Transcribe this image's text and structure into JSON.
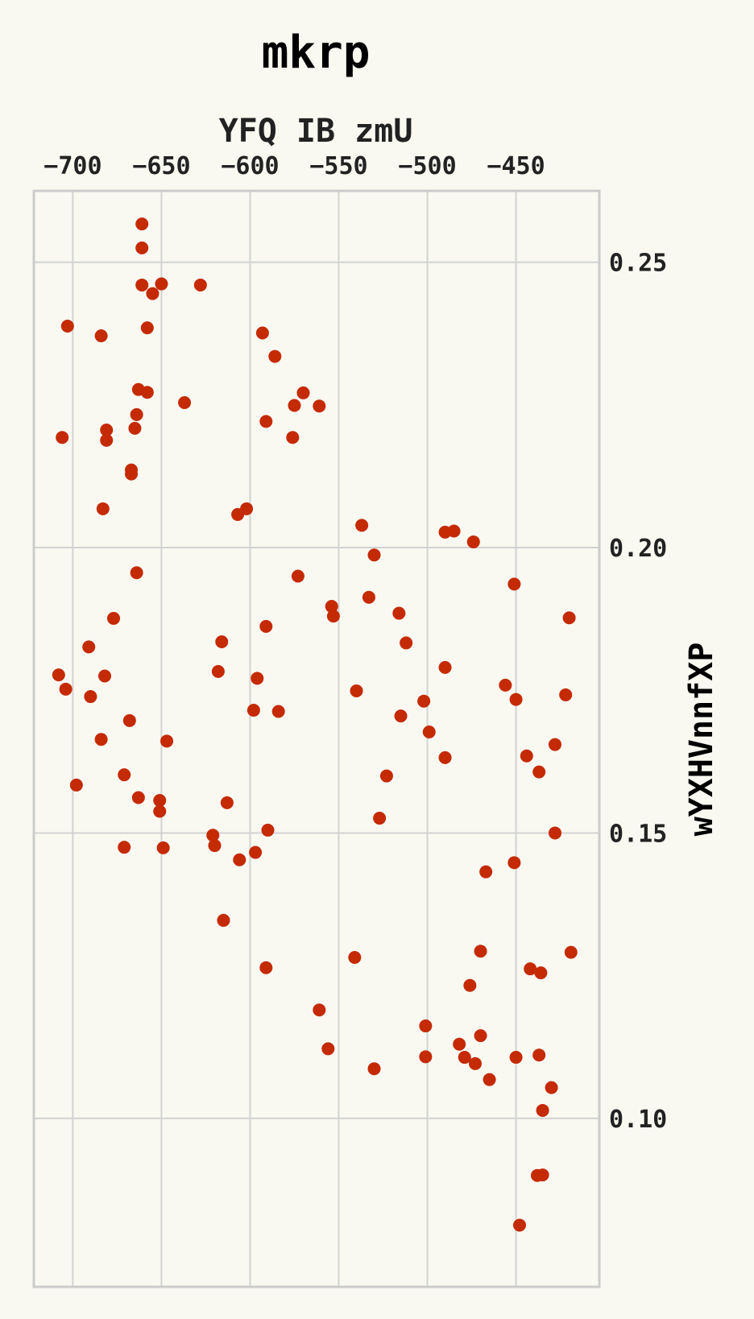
{
  "chart_data": {
    "type": "scatter",
    "title": "mkrp",
    "xlabel": "YFQ IB zmU",
    "ylabel": "wYXHVnnfXP",
    "x_axis_position": "top",
    "y_axis_position": "right",
    "xlim": [
      -722,
      -403
    ],
    "ylim": [
      0.0705,
      0.2625
    ],
    "xticks": [
      -700,
      -650,
      -600,
      -550,
      -500,
      -450
    ],
    "xtick_labels": [
      "−700",
      "−650",
      "−600",
      "−550",
      "−500",
      "−450"
    ],
    "yticks": [
      0.1,
      0.15,
      0.2,
      0.25
    ],
    "ytick_labels": [
      "0.10",
      "0.15",
      "0.20",
      "0.25"
    ],
    "grid": true,
    "colors": {
      "background": "#f9f9f2",
      "marker": "#c42a04",
      "grid": "#d2d2d2",
      "frame": "#cccccc"
    },
    "points": [
      {
        "x": -661,
        "y": 0.2567
      },
      {
        "x": -661,
        "y": 0.2525
      },
      {
        "x": -661,
        "y": 0.246
      },
      {
        "x": -650,
        "y": 0.2462
      },
      {
        "x": -655,
        "y": 0.2445
      },
      {
        "x": -628,
        "y": 0.246
      },
      {
        "x": -658,
        "y": 0.2385
      },
      {
        "x": -703,
        "y": 0.2388
      },
      {
        "x": -684,
        "y": 0.2371
      },
      {
        "x": -593,
        "y": 0.2376
      },
      {
        "x": -586,
        "y": 0.2335
      },
      {
        "x": -663,
        "y": 0.2277
      },
      {
        "x": -658,
        "y": 0.2272
      },
      {
        "x": -570,
        "y": 0.2271
      },
      {
        "x": -637,
        "y": 0.2254
      },
      {
        "x": -575,
        "y": 0.2249
      },
      {
        "x": -561,
        "y": 0.2248
      },
      {
        "x": -664,
        "y": 0.2233
      },
      {
        "x": -591,
        "y": 0.2221
      },
      {
        "x": -665,
        "y": 0.2209
      },
      {
        "x": -681,
        "y": 0.2206
      },
      {
        "x": -706,
        "y": 0.2193
      },
      {
        "x": -681,
        "y": 0.2188
      },
      {
        "x": -576,
        "y": 0.2193
      },
      {
        "x": -667,
        "y": 0.2136
      },
      {
        "x": -667,
        "y": 0.2129
      },
      {
        "x": -683,
        "y": 0.2068
      },
      {
        "x": -602,
        "y": 0.2068
      },
      {
        "x": -607,
        "y": 0.2058
      },
      {
        "x": -537,
        "y": 0.2039
      },
      {
        "x": -490,
        "y": 0.2027
      },
      {
        "x": -485,
        "y": 0.2029
      },
      {
        "x": -474,
        "y": 0.201
      },
      {
        "x": -530,
        "y": 0.1987
      },
      {
        "x": -664,
        "y": 0.1956
      },
      {
        "x": -573,
        "y": 0.195
      },
      {
        "x": -451,
        "y": 0.1936
      },
      {
        "x": -533,
        "y": 0.1913
      },
      {
        "x": -554,
        "y": 0.1897
      },
      {
        "x": -553,
        "y": 0.188
      },
      {
        "x": -516,
        "y": 0.1885
      },
      {
        "x": -677,
        "y": 0.1876
      },
      {
        "x": -420,
        "y": 0.1877
      },
      {
        "x": -591,
        "y": 0.1862
      },
      {
        "x": -616,
        "y": 0.1835
      },
      {
        "x": -512,
        "y": 0.1833
      },
      {
        "x": -691,
        "y": 0.1826
      },
      {
        "x": -490,
        "y": 0.179
      },
      {
        "x": -708,
        "y": 0.1777
      },
      {
        "x": -618,
        "y": 0.1783
      },
      {
        "x": -682,
        "y": 0.1775
      },
      {
        "x": -596,
        "y": 0.1771
      },
      {
        "x": -456,
        "y": 0.1759
      },
      {
        "x": -704,
        "y": 0.1752
      },
      {
        "x": -540,
        "y": 0.1749
      },
      {
        "x": -690,
        "y": 0.1739
      },
      {
        "x": -422,
        "y": 0.1742
      },
      {
        "x": -450,
        "y": 0.1734
      },
      {
        "x": -502,
        "y": 0.1731
      },
      {
        "x": -598,
        "y": 0.1715
      },
      {
        "x": -584,
        "y": 0.1713
      },
      {
        "x": -515,
        "y": 0.1705
      },
      {
        "x": -668,
        "y": 0.1697
      },
      {
        "x": -499,
        "y": 0.1677
      },
      {
        "x": -684,
        "y": 0.1664
      },
      {
        "x": -647,
        "y": 0.1661
      },
      {
        "x": -428,
        "y": 0.1655
      },
      {
        "x": -444,
        "y": 0.1635
      },
      {
        "x": -490,
        "y": 0.1632
      },
      {
        "x": -437,
        "y": 0.1607
      },
      {
        "x": -671,
        "y": 0.1602
      },
      {
        "x": -523,
        "y": 0.16
      },
      {
        "x": -698,
        "y": 0.1584
      },
      {
        "x": -663,
        "y": 0.1562
      },
      {
        "x": -651,
        "y": 0.1557
      },
      {
        "x": -613,
        "y": 0.1553
      },
      {
        "x": -651,
        "y": 0.1538
      },
      {
        "x": -527,
        "y": 0.1526
      },
      {
        "x": -590,
        "y": 0.1505
      },
      {
        "x": -428,
        "y": 0.15
      },
      {
        "x": -621,
        "y": 0.1496
      },
      {
        "x": -620,
        "y": 0.1478
      },
      {
        "x": -671,
        "y": 0.1475
      },
      {
        "x": -649,
        "y": 0.1474
      },
      {
        "x": -597,
        "y": 0.1466
      },
      {
        "x": -606,
        "y": 0.1453
      },
      {
        "x": -451,
        "y": 0.1448
      },
      {
        "x": -467,
        "y": 0.1432
      },
      {
        "x": -615,
        "y": 0.1347
      },
      {
        "x": -470,
        "y": 0.1293
      },
      {
        "x": -419,
        "y": 0.1291
      },
      {
        "x": -541,
        "y": 0.1282
      },
      {
        "x": -591,
        "y": 0.1264
      },
      {
        "x": -442,
        "y": 0.1262
      },
      {
        "x": -436,
        "y": 0.1255
      },
      {
        "x": -476,
        "y": 0.1233
      },
      {
        "x": -561,
        "y": 0.119
      },
      {
        "x": -501,
        "y": 0.1162
      },
      {
        "x": -482,
        "y": 0.113
      },
      {
        "x": -470,
        "y": 0.1145
      },
      {
        "x": -556,
        "y": 0.1122
      },
      {
        "x": -501,
        "y": 0.1108
      },
      {
        "x": -479,
        "y": 0.1107
      },
      {
        "x": -450,
        "y": 0.1107
      },
      {
        "x": -437,
        "y": 0.1111
      },
      {
        "x": -473,
        "y": 0.1096
      },
      {
        "x": -530,
        "y": 0.1087
      },
      {
        "x": -465,
        "y": 0.1068
      },
      {
        "x": -430,
        "y": 0.1054
      },
      {
        "x": -435,
        "y": 0.1014
      },
      {
        "x": -438,
        "y": 0.09
      },
      {
        "x": -435,
        "y": 0.0901
      },
      {
        "x": -448,
        "y": 0.0813
      }
    ]
  }
}
